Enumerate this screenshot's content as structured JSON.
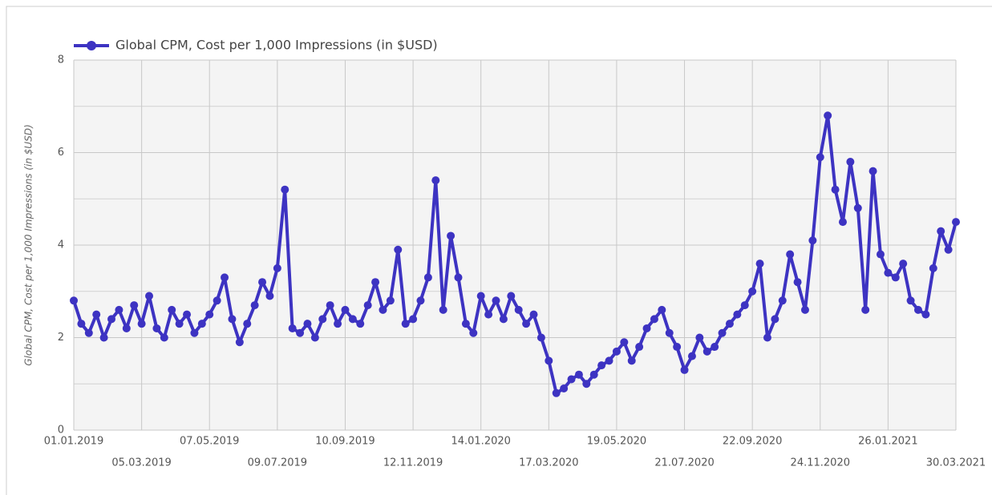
{
  "chart_data": {
    "type": "line",
    "ylabel": "Global CPM, Cost per 1,000 Impressions (in $USD)",
    "legend": "top-left",
    "grid": true,
    "ylim": [
      0,
      8
    ],
    "yticks": [
      0,
      2,
      4,
      6,
      8
    ],
    "y_minor_gridlines": [
      1,
      3,
      5,
      7
    ],
    "categories": [
      "01.01.2019",
      null,
      null,
      null,
      null,
      null,
      null,
      null,
      null,
      "05.03.2019",
      null,
      null,
      null,
      null,
      null,
      null,
      null,
      null,
      "07.05.2019",
      null,
      null,
      null,
      null,
      null,
      null,
      null,
      null,
      "09.07.2019",
      null,
      null,
      null,
      null,
      null,
      null,
      null,
      null,
      "10.09.2019",
      null,
      null,
      null,
      null,
      null,
      null,
      null,
      null,
      "12.11.2019",
      null,
      null,
      null,
      null,
      null,
      null,
      null,
      null,
      "14.01.2020",
      null,
      null,
      null,
      null,
      null,
      null,
      null,
      null,
      "17.03.2020",
      null,
      null,
      null,
      null,
      null,
      null,
      null,
      null,
      "19.05.2020",
      null,
      null,
      null,
      null,
      null,
      null,
      null,
      null,
      "21.07.2020",
      null,
      null,
      null,
      null,
      null,
      null,
      null,
      null,
      "22.09.2020",
      null,
      null,
      null,
      null,
      null,
      null,
      null,
      null,
      "24.11.2020",
      null,
      null,
      null,
      null,
      null,
      null,
      null,
      null,
      "26.01.2021",
      null,
      null,
      null,
      null,
      null,
      null,
      null,
      null,
      "30.03.2021"
    ],
    "series": [
      {
        "name": "Global CPM, Cost per 1,000 Impressions (in $USD)",
        "color": "#3d33c2",
        "values": [
          2.8,
          2.3,
          2.1,
          2.5,
          2.0,
          2.4,
          2.6,
          2.2,
          2.7,
          2.3,
          2.9,
          2.2,
          2.0,
          2.6,
          2.3,
          2.5,
          2.1,
          2.3,
          2.5,
          2.8,
          3.3,
          2.4,
          1.9,
          2.3,
          2.7,
          3.2,
          2.9,
          3.5,
          5.2,
          2.2,
          2.1,
          2.3,
          2.0,
          2.4,
          2.7,
          2.3,
          2.6,
          2.4,
          2.3,
          2.7,
          3.2,
          2.6,
          2.8,
          3.9,
          2.3,
          2.4,
          2.8,
          3.3,
          5.4,
          2.6,
          4.2,
          3.3,
          2.3,
          2.1,
          2.9,
          2.5,
          2.8,
          2.4,
          2.9,
          2.6,
          2.3,
          2.5,
          2.0,
          1.5,
          0.8,
          0.9,
          1.1,
          1.2,
          1.0,
          1.2,
          1.4,
          1.5,
          1.7,
          1.9,
          1.5,
          1.8,
          2.2,
          2.4,
          2.6,
          2.1,
          1.8,
          1.3,
          1.6,
          2.0,
          1.7,
          1.8,
          2.1,
          2.3,
          2.5,
          2.7,
          3.0,
          3.6,
          2.0,
          2.4,
          2.8,
          3.8,
          3.2,
          2.6,
          4.1,
          5.9,
          6.8,
          5.2,
          4.5,
          5.8,
          4.8,
          2.6,
          5.6,
          3.8,
          3.4,
          3.3,
          3.6,
          2.8,
          2.6,
          2.5,
          3.5,
          4.3,
          3.9,
          4.5
        ]
      }
    ]
  }
}
